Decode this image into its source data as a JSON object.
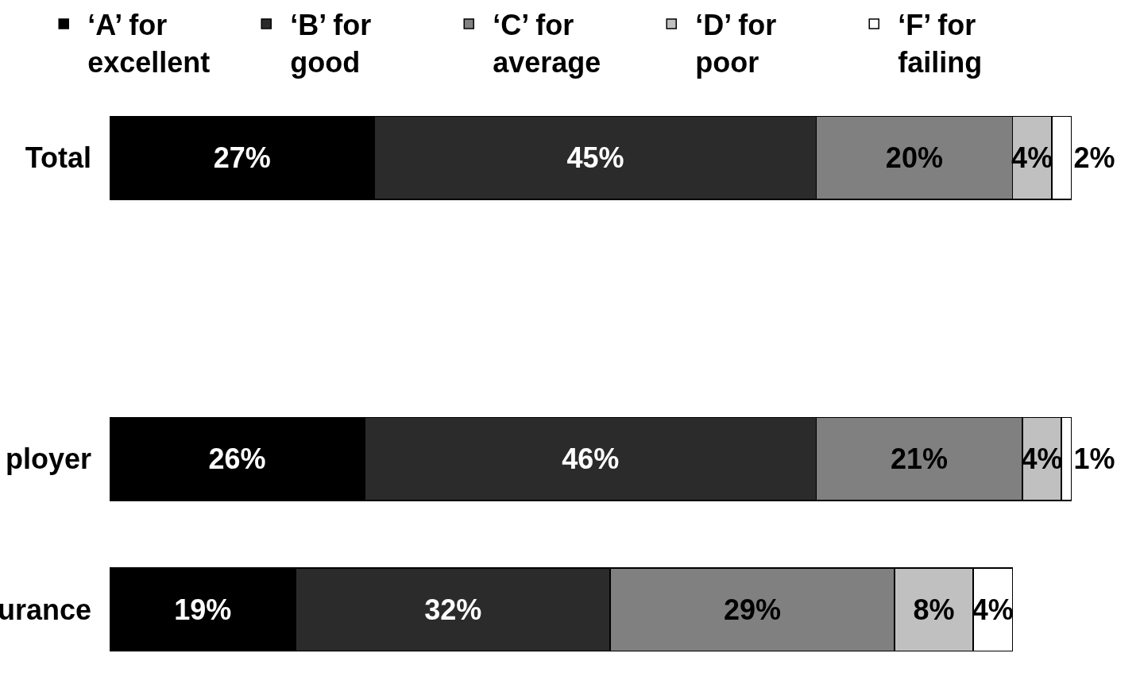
{
  "chart_data": {
    "type": "bar",
    "orientation": "horizontal",
    "stacked": true,
    "categories": [
      "Total",
      null,
      "ployer",
      "urance"
    ],
    "series": [
      {
        "name": "‘A’ for\nexcellent",
        "color": "#000000",
        "values": [
          27,
          null,
          26,
          19
        ],
        "value_labels": [
          "27%",
          null,
          "26%",
          "19%"
        ]
      },
      {
        "name": "‘B’ for\ngood",
        "color": "#2b2b2b",
        "values": [
          45,
          null,
          46,
          32
        ],
        "value_labels": [
          "45%",
          null,
          "46%",
          "32%"
        ]
      },
      {
        "name": "‘C’ for\naverage",
        "color": "#808080",
        "values": [
          20,
          null,
          21,
          29
        ],
        "value_labels": [
          "20%",
          null,
          "21%",
          "29%"
        ]
      },
      {
        "name": "‘D’ for\npoor",
        "color": "#c0c0c0",
        "values": [
          4,
          null,
          4,
          8
        ],
        "value_labels": [
          "4%",
          null,
          "4%",
          "8%"
        ]
      },
      {
        "name": "‘F’ for\nfailing",
        "color": "#ffffff",
        "values": [
          2,
          null,
          1,
          4
        ],
        "value_labels": [
          "2%",
          null,
          "1%",
          "4%"
        ]
      }
    ],
    "xlim": [
      0,
      105
    ],
    "tick_labels": "y",
    "legend": "top"
  }
}
